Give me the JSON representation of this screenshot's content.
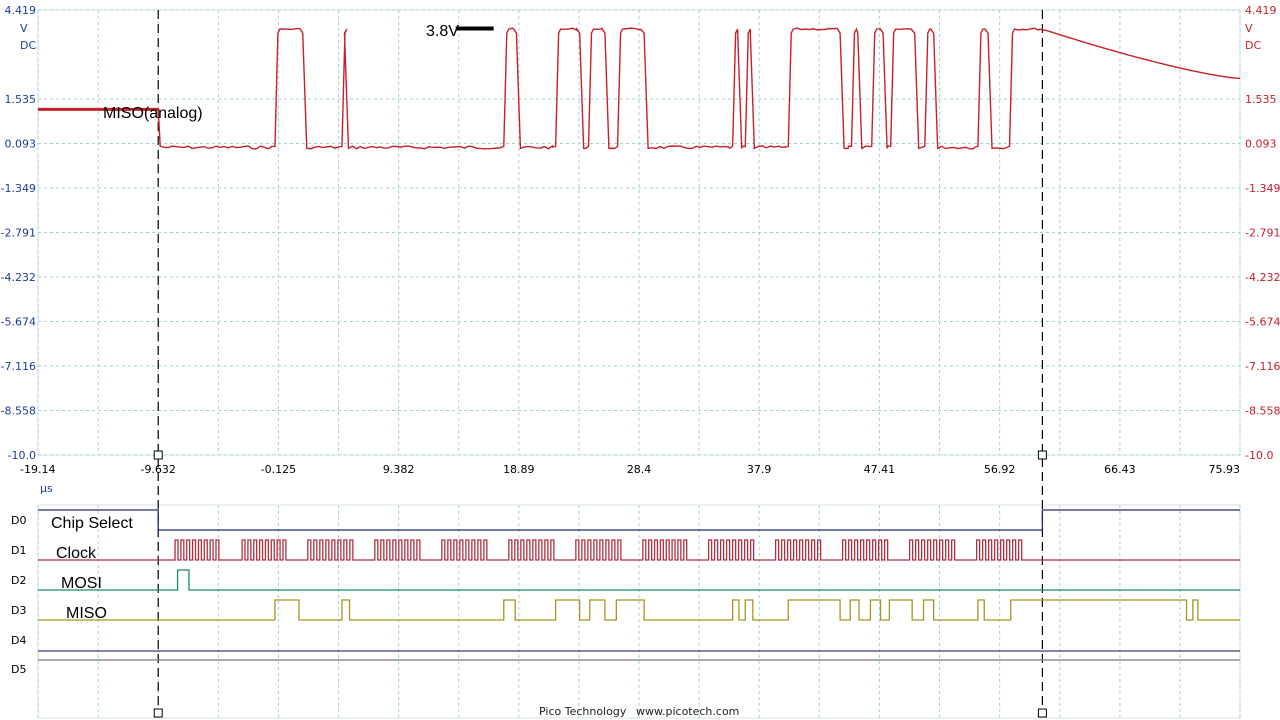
{
  "footer": {
    "brand": "Pico Technology",
    "url": "www.picotech.com"
  },
  "colors": {
    "axis_blue": "#1f3b9a",
    "analog_red": "#c8202a",
    "cs": "#1f2a7a",
    "clock": "#b03040",
    "mosi": "#1a8a6a",
    "miso": "#a89420",
    "d4": "#4a3a7a",
    "d5": "#7a7a7a",
    "grid": "#9fd4d4"
  },
  "chart_data": {
    "type": "line",
    "title": "",
    "x_unit": "µs",
    "x_ticks": [
      "-19.14",
      "-9.632",
      "-0.125",
      "9.382",
      "18.89",
      "28.4",
      "37.9",
      "47.41",
      "56.92",
      "66.43",
      "75.93"
    ],
    "xlim": [
      -19.14,
      75.93
    ],
    "y_unit_lines": [
      "V",
      "DC"
    ],
    "y_ticks": [
      "4.419",
      "1.535",
      "0.093",
      "-1.349",
      "-2.791",
      "-4.232",
      "-5.674",
      "-7.116",
      "-8.558",
      "-10.0"
    ],
    "ylim": [
      -10.0,
      4.419
    ],
    "cursors_us": [
      -9.632,
      60.3
    ],
    "annotations": {
      "analog_label": "MISO(analog)",
      "voltage_marker": "3.8V",
      "voltage_marker_x_us": 16.9,
      "voltage_marker_y": 3.82
    },
    "analog_series": {
      "name": "MISO(analog)",
      "initial_level": 1.2,
      "low_level": 0.0,
      "high_level": 3.8,
      "high_pulses_us": [
        [
          -0.4,
          1.8
        ],
        [
          4.9,
          5.1
        ],
        [
          17.7,
          18.7
        ],
        [
          21.8,
          23.7
        ],
        [
          24.4,
          25.7
        ],
        [
          26.7,
          28.8
        ],
        [
          35.8,
          36.2
        ],
        [
          36.8,
          37.2
        ],
        [
          40.2,
          44.3
        ],
        [
          45.2,
          45.7
        ],
        [
          46.8,
          47.7
        ],
        [
          48.3,
          50.2
        ],
        [
          51.0,
          51.7
        ],
        [
          55.2,
          56.0
        ],
        [
          57.7,
          60.3
        ]
      ],
      "decay_start_us": 60.3,
      "decay_end_us": 75.93,
      "decay_end_level": 2.2
    },
    "digital_channels": [
      {
        "id": "D0",
        "name": "Chip Select",
        "initial": 1,
        "edges_us": [
          -9.632,
          60.3
        ]
      },
      {
        "id": "D1",
        "name": "Clock",
        "initial": 0,
        "clock_bursts_us": [
          [
            -8.3,
            -4.6
          ],
          [
            -3.0,
            0.7
          ],
          [
            2.2,
            6.0
          ],
          [
            7.5,
            11.3
          ],
          [
            12.8,
            16.6
          ],
          [
            18.1,
            21.9
          ],
          [
            23.4,
            27.2
          ],
          [
            28.7,
            32.4
          ],
          [
            33.9,
            37.7
          ],
          [
            39.2,
            43.0
          ],
          [
            44.5,
            48.3
          ],
          [
            49.8,
            53.6
          ],
          [
            55.1,
            58.9
          ]
        ],
        "cycles_per_burst": 8
      },
      {
        "id": "D2",
        "name": "MOSI",
        "initial": 0,
        "high_pulses_us": [
          [
            -8.1,
            -7.2
          ]
        ]
      },
      {
        "id": "D3",
        "name": "MISO",
        "initial": 0,
        "high_pulses_us": [
          [
            -0.4,
            1.5
          ],
          [
            4.9,
            5.5
          ],
          [
            17.7,
            18.6
          ],
          [
            21.8,
            23.7
          ],
          [
            24.5,
            25.7
          ],
          [
            26.6,
            28.8
          ],
          [
            35.8,
            36.3
          ],
          [
            36.8,
            37.4
          ],
          [
            40.2,
            44.3
          ],
          [
            45.1,
            45.8
          ],
          [
            46.7,
            47.5
          ],
          [
            48.2,
            50.0
          ],
          [
            50.9,
            51.7
          ],
          [
            55.2,
            55.7
          ],
          [
            57.8,
            71.7
          ],
          [
            72.2,
            72.6
          ]
        ]
      },
      {
        "id": "D4",
        "name": "",
        "initial": 0
      },
      {
        "id": "D5",
        "name": "",
        "initial": 0
      }
    ]
  }
}
